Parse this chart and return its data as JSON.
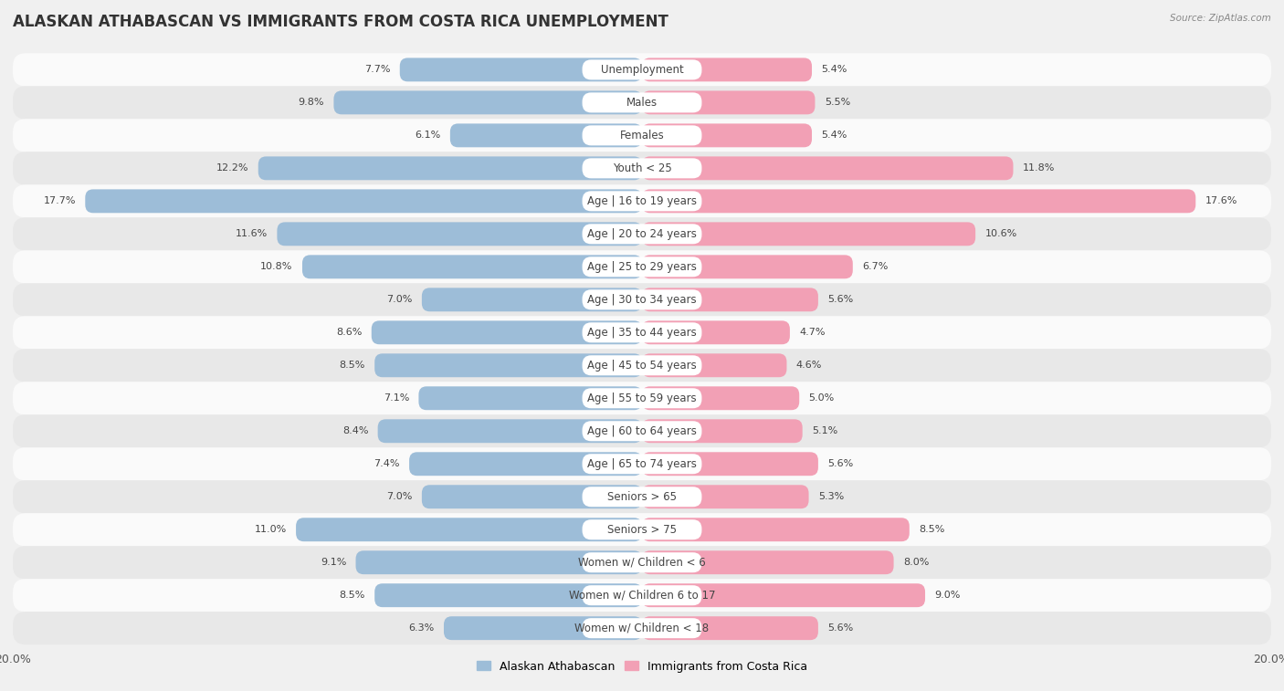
{
  "title": "ALASKAN ATHABASCAN VS IMMIGRANTS FROM COSTA RICA UNEMPLOYMENT",
  "source": "Source: ZipAtlas.com",
  "categories": [
    "Unemployment",
    "Males",
    "Females",
    "Youth < 25",
    "Age | 16 to 19 years",
    "Age | 20 to 24 years",
    "Age | 25 to 29 years",
    "Age | 30 to 34 years",
    "Age | 35 to 44 years",
    "Age | 45 to 54 years",
    "Age | 55 to 59 years",
    "Age | 60 to 64 years",
    "Age | 65 to 74 years",
    "Seniors > 65",
    "Seniors > 75",
    "Women w/ Children < 6",
    "Women w/ Children 6 to 17",
    "Women w/ Children < 18"
  ],
  "left_values": [
    7.7,
    9.8,
    6.1,
    12.2,
    17.7,
    11.6,
    10.8,
    7.0,
    8.6,
    8.5,
    7.1,
    8.4,
    7.4,
    7.0,
    11.0,
    9.1,
    8.5,
    6.3
  ],
  "right_values": [
    5.4,
    5.5,
    5.4,
    11.8,
    17.6,
    10.6,
    6.7,
    5.6,
    4.7,
    4.6,
    5.0,
    5.1,
    5.6,
    5.3,
    8.5,
    8.0,
    9.0,
    5.6
  ],
  "left_color": "#9dbdd8",
  "right_color": "#f2a0b5",
  "bar_height": 0.72,
  "xlim": 20.0,
  "legend_left": "Alaskan Athabascan",
  "legend_right": "Immigrants from Costa Rica",
  "bg_color": "#f0f0f0",
  "row_colors": [
    "#fafafa",
    "#e8e8e8"
  ],
  "title_fontsize": 12,
  "label_fontsize": 8.5,
  "value_fontsize": 8
}
